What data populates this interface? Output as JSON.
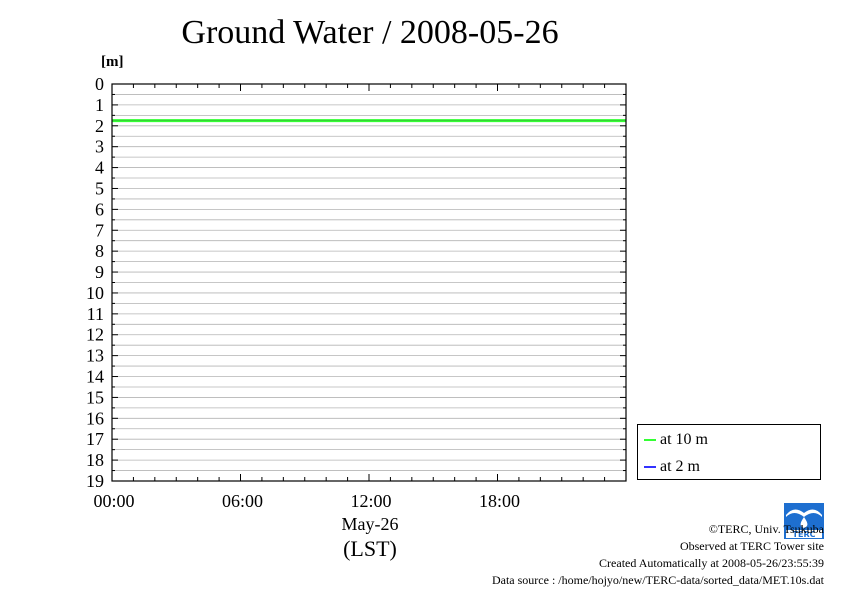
{
  "title": "Ground Water / 2008-05-26",
  "unit_label": "[m]",
  "x_axis": {
    "date_label": "May-26",
    "tz_label": "(LST)"
  },
  "legend": {
    "items": [
      {
        "label": "at 10 m",
        "color": "#33ff33"
      },
      {
        "label": "at 2 m",
        "color": "#3333ff"
      }
    ]
  },
  "credits": {
    "copyright": "©TERC, Univ. Tsukuba",
    "observed": "Observed at TERC Tower site",
    "created": "Created Automatically at 2008-05-26/23:55:39",
    "source": "Data source : /home/hojyo/new/TERC-data/sorted_data/MET.10s.dat"
  },
  "logo_text": "TERC",
  "chart_data": {
    "type": "line",
    "title": "Ground Water / 2008-05-26",
    "xlabel": "May-26 (LST)",
    "ylabel": "[m]",
    "y_inverted": true,
    "ylim": [
      0,
      19
    ],
    "xlim": [
      "00:00",
      "24:00"
    ],
    "x_ticks": [
      "00:00",
      "06:00",
      "12:00",
      "18:00"
    ],
    "y_ticks": [
      "0",
      "1",
      "2",
      "3",
      "4",
      "5",
      "6",
      "7",
      "8",
      "9",
      "10",
      "11",
      "12",
      "13",
      "14",
      "15",
      "16",
      "17",
      "18",
      "19"
    ],
    "grid": true,
    "legend_position": "bottom-right outside",
    "series": [
      {
        "name": "at 10 m",
        "color": "#33ff33",
        "x": [
          "00:00",
          "06:00",
          "12:00",
          "18:00",
          "24:00"
        ],
        "values": [
          1.75,
          1.75,
          1.75,
          1.75,
          1.75
        ]
      },
      {
        "name": "at 2 m",
        "color": "#3333ff",
        "x": [],
        "values": []
      }
    ]
  }
}
